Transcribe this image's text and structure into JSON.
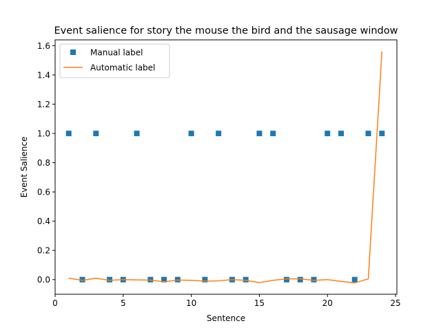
{
  "chart_data": {
    "type": "line",
    "title": "Event salience for story the mouse the bird and the sausage window",
    "xlabel": "Sentence",
    "ylabel": "Event Salience",
    "xlim": [
      0.0,
      25.1
    ],
    "ylim": [
      -0.1,
      1.64
    ],
    "xticks": [
      0,
      5,
      10,
      15,
      20,
      25
    ],
    "xtick_labels": [
      "0",
      "5",
      "10",
      "15",
      "20",
      "25"
    ],
    "yticks": [
      0.0,
      0.2,
      0.4,
      0.6,
      0.8,
      1.0,
      1.2,
      1.4,
      1.6
    ],
    "ytick_labels": [
      "0.0",
      "0.2",
      "0.4",
      "0.6",
      "0.8",
      "1.0",
      "1.2",
      "1.4",
      "1.6"
    ],
    "grid": false,
    "legend_position": "top-left",
    "series": [
      {
        "name": "Manual label",
        "style": "markers",
        "marker": "square",
        "color": "#1f77b4",
        "x": [
          1,
          2,
          3,
          4,
          5,
          6,
          7,
          8,
          9,
          10,
          11,
          12,
          13,
          14,
          15,
          16,
          17,
          18,
          19,
          20,
          21,
          22,
          23,
          24
        ],
        "y": [
          1,
          0,
          1,
          0,
          0,
          1,
          0,
          0,
          0,
          1,
          0,
          1,
          0,
          0,
          1,
          1,
          0,
          0,
          0,
          1,
          1,
          0,
          1,
          1
        ]
      },
      {
        "name": "Automatic label",
        "style": "line",
        "color": "#ff7f0e",
        "x": [
          1,
          2,
          3,
          4,
          5,
          6,
          7,
          8,
          9,
          10,
          11,
          12,
          13,
          14,
          15,
          16,
          17,
          18,
          19,
          20,
          21,
          22,
          23,
          24
        ],
        "y": [
          0.01,
          -0.005,
          0.01,
          -0.005,
          0.0,
          -0.002,
          -0.003,
          -0.015,
          -0.003,
          -0.005,
          -0.01,
          -0.008,
          0.0,
          -0.005,
          -0.02,
          -0.005,
          0.005,
          0.005,
          -0.005,
          0.0,
          -0.012,
          -0.022,
          0.005,
          1.56
        ]
      }
    ]
  }
}
